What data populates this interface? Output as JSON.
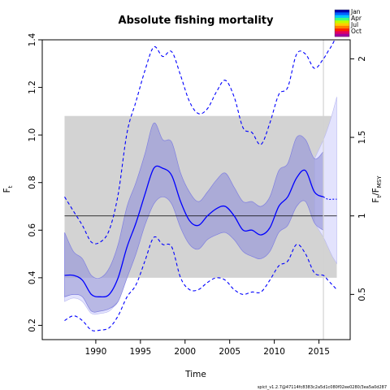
{
  "chart_data": {
    "type": "line",
    "title": "Absolute fishing mortality",
    "xlabel": "Time",
    "ylabel_main": "F",
    "ylabel_sub": "t",
    "ylabel_right_main": "F",
    "ylabel_right_sub1": "t",
    "ylabel_right_mid": "/F",
    "ylabel_right_sub2": "MSY",
    "xlim": [
      1984.0,
      2018.5
    ],
    "ylim": [
      0.14,
      1.4
    ],
    "x_ticks": [
      1990,
      1995,
      2000,
      2005,
      2010,
      2015
    ],
    "y_ticks": [
      0.2,
      0.4,
      0.6,
      0.8,
      1.0,
      1.2,
      1.4
    ],
    "y_tick_labels": [
      "0.2",
      "0.4",
      "0.6",
      "0.8",
      "1.0",
      "1.2",
      "1.4"
    ],
    "right_axis_ratio": 0.66,
    "right_ticks": [
      0.5,
      1,
      1.5,
      2
    ],
    "right_tick_labels": [
      "0.5",
      "1",
      "1.5",
      "2"
    ],
    "fmsy": 0.66,
    "fmsy_band": {
      "x": [
        1986.5,
        2017.0
      ],
      "y": [
        0.4,
        1.08
      ]
    },
    "vertical_line_x": 2015.5,
    "x": [
      1986.5,
      1987.5,
      1988.5,
      1989.5,
      1990.5,
      1991.5,
      1992.5,
      1993.5,
      1994.5,
      1995.5,
      1996.5,
      1997.5,
      1998.5,
      1999.5,
      2000.5,
      2001.5,
      2002.5,
      2003.5,
      2004.5,
      2005.5,
      2006.5,
      2007.5,
      2008.5,
      2009.5,
      2010.5,
      2011.5,
      2012.5,
      2013.5,
      2014.5,
      2015.5
    ],
    "f_estimate": [
      0.41,
      0.41,
      0.39,
      0.33,
      0.32,
      0.33,
      0.4,
      0.53,
      0.63,
      0.75,
      0.86,
      0.86,
      0.83,
      0.72,
      0.64,
      0.62,
      0.66,
      0.69,
      0.7,
      0.66,
      0.6,
      0.6,
      0.58,
      0.61,
      0.7,
      0.74,
      0.82,
      0.85,
      0.76,
      0.74
    ],
    "ci_inner_upper": [
      0.59,
      0.51,
      0.48,
      0.41,
      0.4,
      0.44,
      0.54,
      0.7,
      0.8,
      0.92,
      1.05,
      0.98,
      0.97,
      0.84,
      0.76,
      0.72,
      0.76,
      0.81,
      0.84,
      0.78,
      0.72,
      0.72,
      0.7,
      0.74,
      0.85,
      0.88,
      0.99,
      0.98,
      0.9,
      0.93
    ],
    "ci_inner_lower": [
      0.32,
      0.33,
      0.32,
      0.26,
      0.26,
      0.27,
      0.3,
      0.4,
      0.5,
      0.62,
      0.71,
      0.74,
      0.71,
      0.61,
      0.54,
      0.52,
      0.56,
      0.58,
      0.59,
      0.56,
      0.51,
      0.49,
      0.48,
      0.51,
      0.59,
      0.62,
      0.7,
      0.72,
      0.63,
      0.6
    ],
    "ci_outer_upper": [
      0.74,
      0.68,
      0.62,
      0.55,
      0.55,
      0.6,
      0.75,
      1.01,
      1.14,
      1.27,
      1.37,
      1.33,
      1.35,
      1.25,
      1.14,
      1.09,
      1.11,
      1.18,
      1.23,
      1.16,
      1.03,
      1.01,
      0.96,
      1.05,
      1.17,
      1.2,
      1.34,
      1.34,
      1.28,
      1.32
    ],
    "ci_outer_lower": [
      0.22,
      0.24,
      0.22,
      0.18,
      0.18,
      0.19,
      0.24,
      0.32,
      0.37,
      0.47,
      0.57,
      0.54,
      0.53,
      0.4,
      0.35,
      0.35,
      0.38,
      0.4,
      0.39,
      0.35,
      0.33,
      0.34,
      0.34,
      0.39,
      0.45,
      0.47,
      0.54,
      0.5,
      0.42,
      0.41
    ],
    "x_forecast": [
      2015.5,
      2016.0,
      2016.5,
      2017.0
    ],
    "f_forecast": [
      0.74,
      0.73,
      0.73,
      0.73
    ],
    "ci_forecast_upper": [
      0.98,
      1.03,
      1.09,
      1.16
    ],
    "ci_forecast_lower": [
      0.57,
      0.53,
      0.49,
      0.46
    ],
    "ci_outer_forecast_upper": [
      1.32,
      1.35,
      1.38,
      1.42
    ],
    "ci_outer_forecast_lower": [
      0.41,
      0.39,
      0.37,
      0.35
    ],
    "legend": {
      "entries": [
        "Jan",
        "Apr",
        "Jul",
        "Oct"
      ],
      "colors": [
        "#0000aa",
        "#0060ff",
        "#00c8ff",
        "#40ff80",
        "#c0ff00",
        "#ffd000",
        "#ff8000",
        "#ff2000",
        "#e00060",
        "#a000a0"
      ]
    },
    "colors": {
      "line": "#0000ff",
      "ci_fill": "#9a9ad8",
      "forecast_fill": "#e3e3fd",
      "band": "#d3d3d3",
      "ref_line": "#000000",
      "vline": "#d3d3d3"
    },
    "footer": "spict_v1.2.7@47114fc8383c2a5d1c080f02ee0280/3ea5a0d287"
  }
}
